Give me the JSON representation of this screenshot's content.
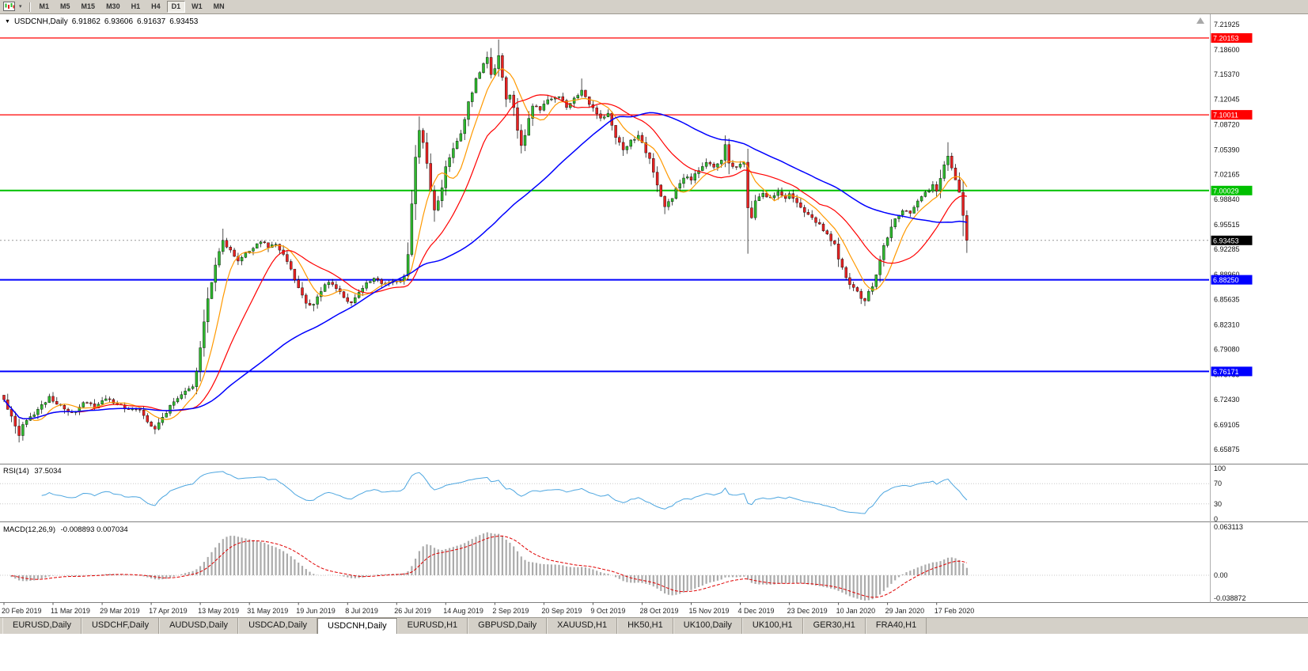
{
  "toolbar": {
    "dropdown_icon": "▾",
    "timeframes": [
      "M1",
      "M5",
      "M15",
      "M30",
      "H1",
      "H4",
      "D1",
      "W1",
      "MN"
    ],
    "active": "D1"
  },
  "chart_header": {
    "collapse_icon": "▼",
    "symbol": "USDCNH,Daily",
    "open": "6.91862",
    "high": "6.93606",
    "low": "6.91637",
    "close": "6.93453"
  },
  "tabs": {
    "items": [
      "EURUSD,Daily",
      "USDCHF,Daily",
      "AUDUSD,Daily",
      "USDCAD,Daily",
      "USDCNH,Daily",
      "EURUSD,H1",
      "GBPUSD,Daily",
      "XAUUSD,H1",
      "HK50,H1",
      "UK100,Daily",
      "UK100,H1",
      "GER30,H1",
      "FRA40,H1"
    ],
    "active": "USDCNH,Daily"
  },
  "chart_data": {
    "type": "candlestick",
    "symbol": "USDCNH",
    "timeframe": "Daily",
    "bars": 256,
    "last_close": 6.93453,
    "candle_colors": {
      "up": "#2EB82E",
      "down": "#E62222",
      "outline": "#000000"
    },
    "y_axis": {
      "ticks": [
        "7.21925",
        "7.18600",
        "7.15370",
        "7.12045",
        "7.08720",
        "7.05390",
        "7.02165",
        "6.98840",
        "6.95515",
        "6.92285",
        "6.88960",
        "6.85635",
        "6.82310",
        "6.79080",
        "6.75755",
        "6.72430",
        "6.69105",
        "6.65875"
      ]
    },
    "x_axis": {
      "ticks": [
        "20 Feb 2019",
        "11 Mar 2019",
        "29 Mar 2019",
        "17 Apr 2019",
        "13 May 2019",
        "31 May 2019",
        "19 Jun 2019",
        "8 Jul 2019",
        "26 Jul 2019",
        "14 Aug 2019",
        "2 Sep 2019",
        "20 Sep 2019",
        "9 Oct 2019",
        "28 Oct 2019",
        "15 Nov 2019",
        "4 Dec 2019",
        "23 Dec 2019",
        "10 Jan 2020",
        "29 Jan 2020",
        "17 Feb 2020"
      ]
    },
    "horizontal_levels": [
      {
        "price": 7.20153,
        "label": "7.20153",
        "color": "#FF0000",
        "width": 1.2
      },
      {
        "price": 7.10011,
        "label": "7.10011",
        "color": "#FF0000",
        "width": 1.2
      },
      {
        "price": 7.00029,
        "label": "7.00029",
        "color": "#00C000",
        "width": 2
      },
      {
        "price": 6.8825,
        "label": "6.88250",
        "color": "#0000FF",
        "width": 2
      },
      {
        "price": 6.76171,
        "label": "6.76171",
        "color": "#0000FF",
        "width": 2
      }
    ],
    "current_price": {
      "value": 6.93453,
      "label": "6.93453",
      "badge_color": "#000000"
    },
    "moving_averages": [
      {
        "period": 8,
        "color": "#FF9900",
        "width": 1.2
      },
      {
        "period": 20,
        "color": "#FF0000",
        "width": 1.2
      },
      {
        "period": 55,
        "color": "#0000FF",
        "width": 1.5
      }
    ],
    "close_anchors": [
      [
        0,
        6.722
      ],
      [
        2,
        6.705
      ],
      [
        4,
        6.678
      ],
      [
        5,
        6.69
      ],
      [
        7,
        6.7
      ],
      [
        9,
        6.712
      ],
      [
        12,
        6.728
      ],
      [
        15,
        6.716
      ],
      [
        18,
        6.705
      ],
      [
        21,
        6.722
      ],
      [
        24,
        6.714
      ],
      [
        27,
        6.727
      ],
      [
        30,
        6.718
      ],
      [
        33,
        6.71
      ],
      [
        36,
        6.713
      ],
      [
        38,
        6.695
      ],
      [
        40,
        6.686
      ],
      [
        42,
        6.7
      ],
      [
        44,
        6.715
      ],
      [
        46,
        6.728
      ],
      [
        48,
        6.735
      ],
      [
        50,
        6.742
      ],
      [
        51,
        6.76
      ],
      [
        52,
        6.792
      ],
      [
        53,
        6.825
      ],
      [
        54,
        6.858
      ],
      [
        55,
        6.88
      ],
      [
        56,
        6.902
      ],
      [
        57,
        6.922
      ],
      [
        58,
        6.936
      ],
      [
        60,
        6.92
      ],
      [
        62,
        6.908
      ],
      [
        64,
        6.916
      ],
      [
        66,
        6.926
      ],
      [
        68,
        6.934
      ],
      [
        70,
        6.926
      ],
      [
        72,
        6.93
      ],
      [
        74,
        6.916
      ],
      [
        76,
        6.896
      ],
      [
        78,
        6.872
      ],
      [
        80,
        6.854
      ],
      [
        82,
        6.848
      ],
      [
        84,
        6.868
      ],
      [
        86,
        6.88
      ],
      [
        88,
        6.873
      ],
      [
        90,
        6.86
      ],
      [
        92,
        6.85
      ],
      [
        94,
        6.866
      ],
      [
        96,
        6.877
      ],
      [
        98,
        6.883
      ],
      [
        100,
        6.878
      ],
      [
        102,
        6.881
      ],
      [
        104,
        6.879
      ],
      [
        106,
        6.886
      ],
      [
        107,
        6.915
      ],
      [
        108,
        6.985
      ],
      [
        109,
        7.045
      ],
      [
        110,
        7.082
      ],
      [
        111,
        7.065
      ],
      [
        112,
        7.035
      ],
      [
        113,
        6.998
      ],
      [
        114,
        6.975
      ],
      [
        115,
        6.985
      ],
      [
        116,
        7.005
      ],
      [
        117,
        7.032
      ],
      [
        119,
        7.058
      ],
      [
        121,
        7.075
      ],
      [
        123,
        7.115
      ],
      [
        125,
        7.148
      ],
      [
        127,
        7.168
      ],
      [
        128,
        7.175
      ],
      [
        129,
        7.155
      ],
      [
        130,
        7.162
      ],
      [
        131,
        7.178
      ],
      [
        132,
        7.148
      ],
      [
        133,
        7.122
      ],
      [
        134,
        7.128
      ],
      [
        135,
        7.112
      ],
      [
        136,
        7.082
      ],
      [
        137,
        7.058
      ],
      [
        138,
        7.072
      ],
      [
        139,
        7.096
      ],
      [
        140,
        7.112
      ],
      [
        142,
        7.106
      ],
      [
        143,
        7.116
      ],
      [
        145,
        7.12
      ],
      [
        147,
        7.126
      ],
      [
        149,
        7.112
      ],
      [
        151,
        7.12
      ],
      [
        153,
        7.134
      ],
      [
        155,
        7.116
      ],
      [
        156,
        7.11
      ],
      [
        158,
        7.096
      ],
      [
        160,
        7.102
      ],
      [
        162,
        7.072
      ],
      [
        164,
        7.056
      ],
      [
        166,
        7.066
      ],
      [
        168,
        7.071
      ],
      [
        169,
        7.063
      ],
      [
        171,
        7.042
      ],
      [
        173,
        7.008
      ],
      [
        175,
        6.98
      ],
      [
        177,
        6.992
      ],
      [
        179,
        7.01
      ],
      [
        181,
        7.02
      ],
      [
        182,
        7.016
      ],
      [
        184,
        7.026
      ],
      [
        186,
        7.036
      ],
      [
        188,
        7.031
      ],
      [
        190,
        7.042
      ],
      [
        191,
        7.062
      ],
      [
        192,
        7.038
      ],
      [
        193,
        7.03
      ],
      [
        195,
        7.033
      ],
      [
        196,
        7.04
      ],
      [
        197,
        6.978
      ],
      [
        198,
        6.962
      ],
      [
        199,
        6.985
      ],
      [
        201,
        6.996
      ],
      [
        203,
        6.992
      ],
      [
        205,
        6.997
      ],
      [
        207,
        6.992
      ],
      [
        208,
        6.996
      ],
      [
        210,
        6.986
      ],
      [
        212,
        6.972
      ],
      [
        214,
        6.963
      ],
      [
        216,
        6.955
      ],
      [
        218,
        6.944
      ],
      [
        220,
        6.928
      ],
      [
        221,
        6.908
      ],
      [
        223,
        6.885
      ],
      [
        225,
        6.87
      ],
      [
        227,
        6.86
      ],
      [
        228,
        6.856
      ],
      [
        230,
        6.874
      ],
      [
        232,
        6.908
      ],
      [
        233,
        6.928
      ],
      [
        234,
        6.94
      ],
      [
        236,
        6.962
      ],
      [
        238,
        6.976
      ],
      [
        240,
        6.968
      ],
      [
        242,
        6.986
      ],
      [
        244,
        6.996
      ],
      [
        246,
        7.006
      ],
      [
        247,
        7.0
      ],
      [
        248,
        7.016
      ],
      [
        249,
        7.036
      ],
      [
        250,
        7.046
      ],
      [
        251,
        7.03
      ],
      [
        252,
        7.012
      ],
      [
        253,
        6.996
      ],
      [
        254,
        6.968
      ],
      [
        255,
        6.93453
      ]
    ],
    "wick_high_overrides": [
      [
        58,
        6.95
      ],
      [
        110,
        7.098
      ],
      [
        131,
        7.1995
      ],
      [
        153,
        7.148
      ],
      [
        191,
        7.073
      ],
      [
        250,
        7.064
      ]
    ],
    "wick_low_overrides": [
      [
        4,
        6.668
      ],
      [
        40,
        6.679
      ],
      [
        82,
        6.841
      ],
      [
        114,
        6.959
      ],
      [
        197,
        6.917
      ],
      [
        228,
        6.848
      ],
      [
        254,
        6.94
      ]
    ],
    "indicators": {
      "rsi": {
        "label": "RSI(14)",
        "period": 14,
        "value": "37.5034",
        "scale": [
          "100",
          "70",
          "30",
          "0"
        ],
        "guide_levels": [
          70,
          30
        ],
        "color": "#4DA6E0"
      },
      "macd": {
        "label": "MACD(12,26,9)",
        "fast": 12,
        "slow": 26,
        "signal": 9,
        "value": "-0.008893 0.007034",
        "scale": [
          "0.063113",
          "0.00",
          "-0.038872"
        ],
        "histogram_color": "#ABABAB",
        "signal_color": "#E00000"
      }
    }
  }
}
